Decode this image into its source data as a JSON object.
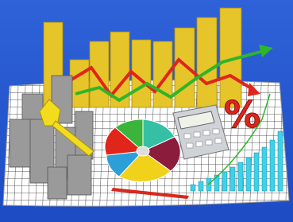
{
  "image": {
    "symbol": "%"
  }
}
